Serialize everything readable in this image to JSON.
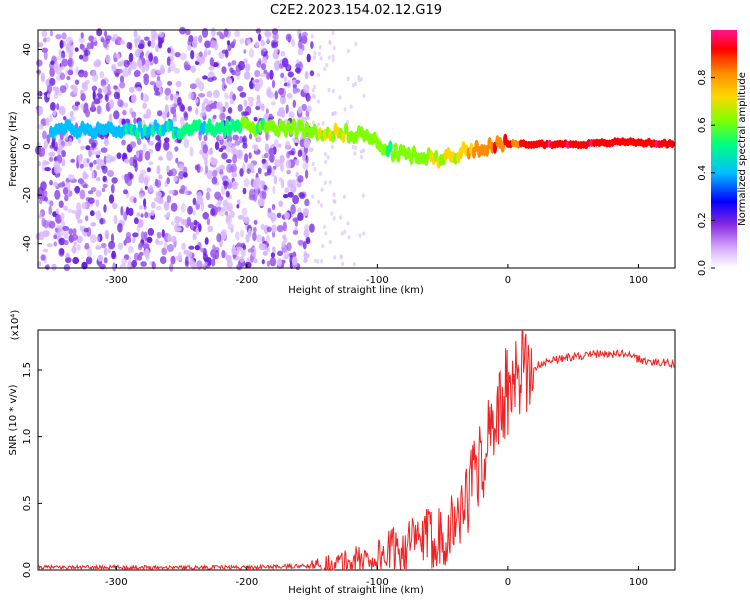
{
  "title": "C2E2.2023.154.02.12.G19",
  "chart_data": [
    {
      "type": "heatmap",
      "title": "C2E2.2023.154.02.12.G19",
      "xlabel": "Height of straight line (km)",
      "ylabel": "Frequency (Hz)",
      "xlim": [
        -360,
        128
      ],
      "ylim": [
        -50,
        48
      ],
      "x_ticks": [
        -300,
        -200,
        -100,
        0,
        100
      ],
      "y_ticks": [
        -40,
        -20,
        0,
        20,
        40
      ],
      "colorbar": {
        "label": "Normalized spectral amplitude",
        "range": [
          0.0,
          1.0
        ],
        "ticks": [
          0.0,
          0.2,
          0.4,
          0.6,
          0.8
        ],
        "colormap": [
          "#d8b0ff",
          "#8a2be2",
          "#0000ff",
          "#00bfff",
          "#00ff7f",
          "#7fff00",
          "#ffd700",
          "#ff8c00",
          "#ff0000",
          "#ff1493"
        ]
      },
      "ridge": [
        {
          "x": -350,
          "y": 7,
          "a": 0.35
        },
        {
          "x": -300,
          "y": 7,
          "a": 0.35
        },
        {
          "x": -250,
          "y": 7,
          "a": 0.4
        },
        {
          "x": -215,
          "y": 8,
          "a": 0.45
        },
        {
          "x": -170,
          "y": 8,
          "a": 0.55
        },
        {
          "x": -140,
          "y": 6,
          "a": 0.6
        },
        {
          "x": -110,
          "y": 5,
          "a": 0.55
        },
        {
          "x": -90,
          "y": -2,
          "a": 0.5
        },
        {
          "x": -70,
          "y": -4,
          "a": 0.55
        },
        {
          "x": -55,
          "y": -5,
          "a": 0.6
        },
        {
          "x": -40,
          "y": -3,
          "a": 0.65
        },
        {
          "x": -20,
          "y": 0,
          "a": 0.75
        },
        {
          "x": 0,
          "y": 1,
          "a": 0.85
        },
        {
          "x": 30,
          "y": 1,
          "a": 0.9
        },
        {
          "x": 60,
          "y": 1,
          "a": 0.9
        },
        {
          "x": 90,
          "y": 2,
          "a": 0.9
        },
        {
          "x": 128,
          "y": 1,
          "a": 0.9
        }
      ]
    },
    {
      "type": "line",
      "xlabel": "Height of straight line (km)",
      "ylabel": "SNR (10 * v/v)",
      "y_multiplier": "(x10⁴)",
      "xlim": [
        -360,
        128
      ],
      "ylim": [
        0.0,
        1.8
      ],
      "x_ticks": [
        -300,
        -200,
        -100,
        0,
        100
      ],
      "y_ticks": [
        0.0,
        0.5,
        1.0,
        1.5
      ],
      "color": "#ee2222",
      "series": [
        {
          "x": [
            -360,
            -300,
            -200,
            -150,
            -120,
            -100,
            -80,
            -60,
            -45,
            -35,
            -25,
            -15,
            -10,
            -5,
            0,
            10,
            20,
            30,
            50,
            70,
            90,
            100,
            110,
            128
          ],
          "values": [
            0.02,
            0.02,
            0.02,
            0.03,
            0.06,
            0.1,
            0.18,
            0.24,
            0.3,
            0.45,
            0.7,
            0.95,
            1.1,
            1.25,
            1.3,
            1.45,
            1.52,
            1.57,
            1.6,
            1.62,
            1.62,
            1.58,
            1.56,
            1.55
          ]
        }
      ]
    }
  ]
}
